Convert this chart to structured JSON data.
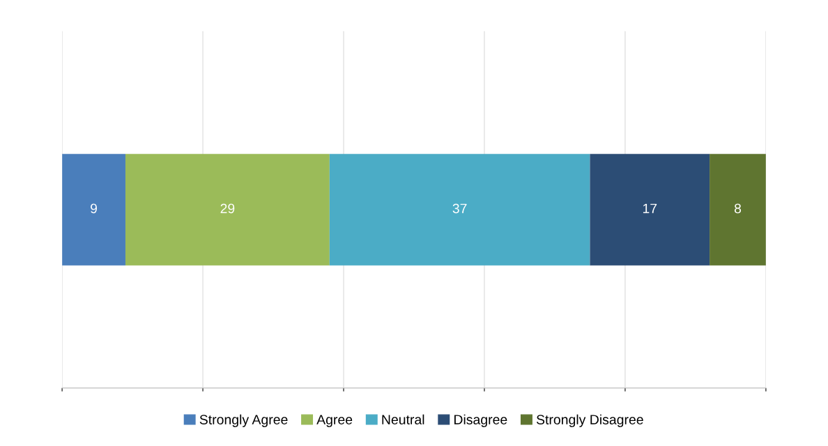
{
  "chart_data": {
    "type": "bar",
    "orientation": "horizontal",
    "stacked": true,
    "categories": [
      null
    ],
    "series": [
      {
        "name": "Strongly Agree",
        "color": "#4a7ebb",
        "values": [
          9
        ]
      },
      {
        "name": "Agree",
        "color": "#9bbb59",
        "values": [
          29
        ]
      },
      {
        "name": "Neutral",
        "color": "#4bacc6",
        "values": [
          37
        ]
      },
      {
        "name": "Disagree",
        "color": "#2c4d75",
        "values": [
          17
        ]
      },
      {
        "name": "Strongly Disagree",
        "color": "#5f7530",
        "values": [
          8
        ]
      }
    ],
    "xlim": [
      0,
      100
    ],
    "xticks": [
      {
        "value": 0,
        "label": null
      },
      {
        "value": 20,
        "label": null
      },
      {
        "value": 40,
        "label": null
      },
      {
        "value": 60,
        "label": null
      },
      {
        "value": 80,
        "label": null
      },
      {
        "value": 100,
        "label": null
      }
    ],
    "data_labels": true,
    "grid": "x",
    "legend": "bottom"
  }
}
